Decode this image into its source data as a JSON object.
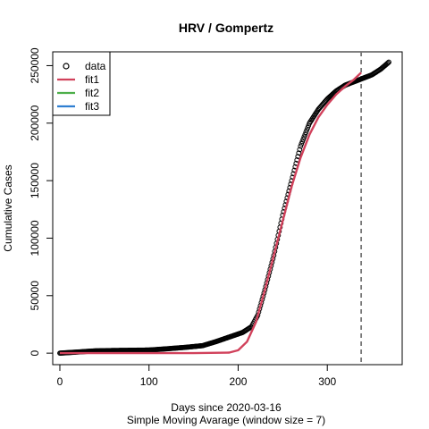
{
  "chart_data": {
    "type": "line",
    "title": "HRV / Gompertz",
    "xlabel": "Days since 2020-03-16",
    "xlabel2": "Simple Moving Avarage (window size = 7)",
    "ylabel": "Cumulative Cases",
    "xlim": [
      -8,
      384
    ],
    "ylim": [
      -10000,
      262000
    ],
    "x_ticks": [
      0,
      100,
      200,
      300
    ],
    "y_ticks": [
      0,
      50000,
      100000,
      150000,
      200000,
      250000
    ],
    "x_tick_labels": [
      "0",
      "100",
      "200",
      "300"
    ],
    "y_tick_labels": [
      "0",
      "50000",
      "100000",
      "150000",
      "200000",
      "250000"
    ],
    "vline_x": 338,
    "legend_position": "top-left",
    "series": [
      {
        "name": "data",
        "style": "points",
        "color": "#000000",
        "x": [
          0,
          20,
          40,
          60,
          80,
          100,
          120,
          140,
          160,
          175,
          190,
          205,
          215,
          222,
          230,
          240,
          250,
          260,
          270,
          280,
          290,
          300,
          310,
          320,
          330,
          340,
          350,
          360,
          369
        ],
        "y": [
          0,
          1000,
          2000,
          2300,
          2500,
          2700,
          3800,
          5000,
          6500,
          10000,
          14000,
          18000,
          23000,
          33000,
          55000,
          85000,
          120000,
          150000,
          180000,
          200000,
          212000,
          221000,
          228000,
          233000,
          236000,
          239000,
          242000,
          247000,
          253000
        ]
      },
      {
        "name": "fit1",
        "style": "line",
        "color": "#d1415b",
        "x": [
          0,
          150,
          190,
          200,
          210,
          220,
          230,
          240,
          250,
          260,
          270,
          280,
          290,
          300,
          310,
          320,
          330,
          338
        ],
        "y": [
          0,
          0,
          500,
          2500,
          10000,
          27000,
          55000,
          85000,
          115000,
          145000,
          170000,
          190000,
          205000,
          216000,
          225000,
          232000,
          238000,
          244000
        ]
      },
      {
        "name": "fit2",
        "style": "line",
        "color": "#4daf4a",
        "x": [],
        "y": []
      },
      {
        "name": "fit3",
        "style": "line",
        "color": "#2f7fd1",
        "x": [],
        "y": []
      }
    ]
  }
}
